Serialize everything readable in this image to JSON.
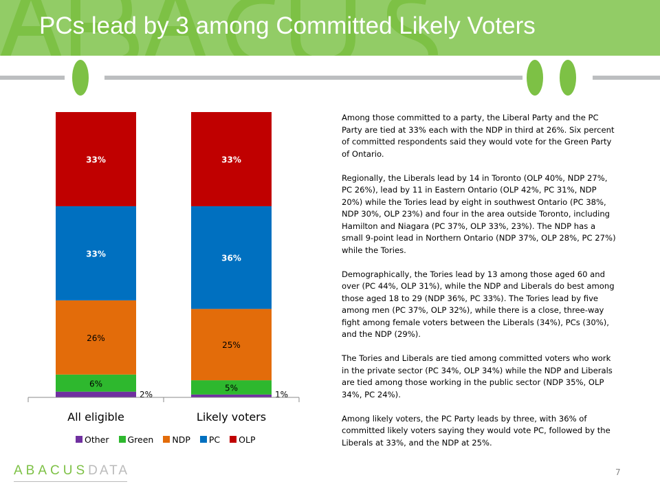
{
  "header": {
    "title": "PCs lead by 3 among Committed Likely Voters",
    "watermark": "ABACUS"
  },
  "chart_data": {
    "type": "bar",
    "stacked": true,
    "categories": [
      "All eligible",
      "Likely voters"
    ],
    "series": [
      {
        "name": "Other",
        "color": "#7030a0",
        "values": [
          2,
          1
        ]
      },
      {
        "name": "Green",
        "color": "#2eb82e",
        "values": [
          6,
          5
        ]
      },
      {
        "name": "NDP",
        "color": "#e36c0a",
        "values": [
          26,
          25
        ]
      },
      {
        "name": "PC",
        "color": "#0070c0",
        "values": [
          33,
          36
        ]
      },
      {
        "name": "OLP",
        "color": "#c00000",
        "values": [
          33,
          33
        ]
      }
    ],
    "ylim": [
      0,
      100
    ],
    "legend": "bottom",
    "grid": false
  },
  "body": {
    "paragraphs": [
      "Among those committed to a party, the Liberal Party and the PC Party are tied at 33% each with the NDP in third at 26%.  Six percent of committed respondents said they would vote for the Green Party of Ontario.",
      "Regionally, the Liberals lead by 14 in Toronto (OLP 40%, NDP 27%, PC 26%), lead by 11 in Eastern Ontario (OLP 42%, PC 31%, NDP 20%) while the Tories lead by eight in southwest Ontario (PC 38%, NDP 30%, OLP 23%) and four in the area outside Toronto, including Hamilton and Niagara (PC 37%, OLP 33%, 23%).  The NDP has a small 9-point lead in Northern Ontario (NDP 37%, OLP 28%, PC 27%) while the Tories.",
      "Demographically, the Tories lead by 13 among those aged 60 and over (PC 44%, OLP 31%), while the NDP and Liberals do best among those aged 18 to 29 (NDP 36%, PC 33%).  The Tories lead by five among men (PC 37%, OLP 32%), while there is a close, three-way fight among female voters between the Liberals (34%), PCs (30%), and the NDP (29%).",
      "The Tories and Liberals are tied among committed voters who work in the private sector (PC 34%, OLP 34%) while the NDP and Liberals are tied among those working in the public sector (NDP 35%, OLP 34%, PC 24%).",
      "Among likely voters, the PC Party leads by three, with 36% of committed likely voters saying they would vote PC, followed by the Liberals at 33%, and the NDP at 25%."
    ]
  },
  "footer": {
    "logo_a": "ABACUS",
    "logo_b": "DATA",
    "page": "7"
  }
}
